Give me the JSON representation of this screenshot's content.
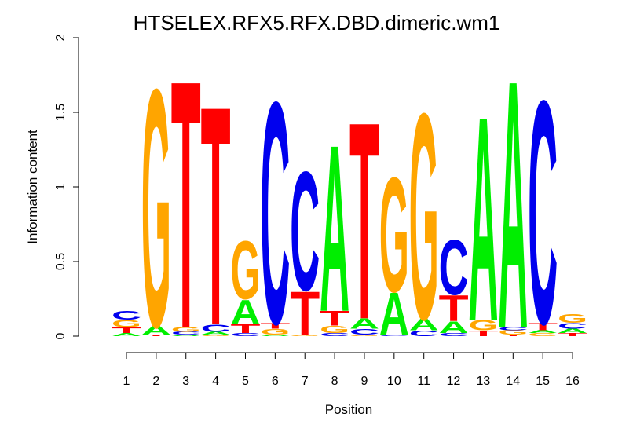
{
  "chart_data": {
    "type": "sequence-logo",
    "title": "HTSELEX.RFX5.RFX.DBD.dimeric.wm1",
    "xlabel": "Position",
    "ylabel": "Information content",
    "ylim": [
      0,
      2
    ],
    "yticks": [
      "0",
      "0.5",
      "1",
      "1.5",
      "2"
    ],
    "positions": [
      "1",
      "2",
      "3",
      "4",
      "5",
      "6",
      "7",
      "8",
      "9",
      "10",
      "11",
      "12",
      "13",
      "14",
      "15",
      "16"
    ],
    "colors": {
      "A": "#00ee00",
      "C": "#0000ee",
      "G": "#ffa500",
      "T": "#ff0000"
    },
    "stacks": [
      [
        [
          "A",
          0.02
        ],
        [
          "T",
          0.04
        ],
        [
          "G",
          0.05
        ],
        [
          "C",
          0.06
        ]
      ],
      [
        [
          "T",
          0.01
        ],
        [
          "A",
          0.06
        ],
        [
          "G",
          1.64
        ]
      ],
      [
        [
          "A",
          0.01
        ],
        [
          "C",
          0.02
        ],
        [
          "G",
          0.03
        ],
        [
          "T",
          1.71
        ]
      ],
      [
        [
          "G",
          0.01
        ],
        [
          "A",
          0.02
        ],
        [
          "C",
          0.05
        ],
        [
          "T",
          1.51
        ]
      ],
      [
        [
          "C",
          0.02
        ],
        [
          "T",
          0.06
        ],
        [
          "A",
          0.17
        ],
        [
          "G",
          0.4
        ]
      ],
      [
        [
          "A",
          0.01
        ],
        [
          "G",
          0.04
        ],
        [
          "T",
          0.04
        ],
        [
          "C",
          1.53
        ]
      ],
      [
        [
          "G",
          0.01
        ],
        [
          "T",
          0.3
        ],
        [
          "C",
          0.82
        ]
      ],
      [
        [
          "C",
          0.02
        ],
        [
          "G",
          0.05
        ],
        [
          "T",
          0.1
        ],
        [
          "A",
          1.15
        ]
      ],
      [
        [
          "G",
          0.01
        ],
        [
          "C",
          0.04
        ],
        [
          "A",
          0.07
        ],
        [
          "T",
          1.36
        ]
      ],
      [
        [
          "C",
          0.01
        ],
        [
          "A",
          0.29
        ],
        [
          "G",
          0.79
        ]
      ],
      [
        [
          "C",
          0.04
        ],
        [
          "A",
          0.08
        ],
        [
          "G",
          1.42
        ]
      ],
      [
        [
          "C",
          0.02
        ],
        [
          "A",
          0.08
        ],
        [
          "T",
          0.18
        ],
        [
          "C",
          0.38
        ]
      ],
      [
        [
          "T",
          0.04
        ],
        [
          "G",
          0.07
        ],
        [
          "A",
          1.41
        ]
      ],
      [
        [
          "T",
          0.01
        ],
        [
          "G",
          0.03
        ],
        [
          "C",
          0.02
        ],
        [
          "A",
          1.71
        ]
      ],
      [
        [
          "G",
          0.02
        ],
        [
          "A",
          0.02
        ],
        [
          "T",
          0.05
        ],
        [
          "C",
          1.54
        ]
      ],
      [
        [
          "T",
          0.02
        ],
        [
          "A",
          0.03
        ],
        [
          "C",
          0.04
        ],
        [
          "G",
          0.06
        ]
      ]
    ]
  }
}
